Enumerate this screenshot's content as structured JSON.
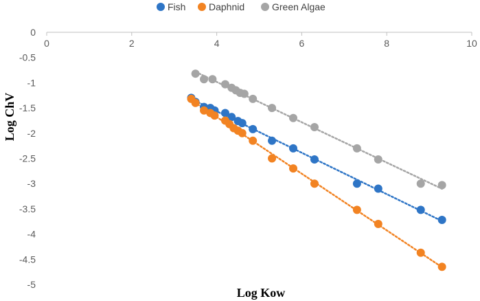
{
  "chart_data": {
    "type": "scatter",
    "title": "",
    "xlabel": "Log Kow",
    "ylabel": "Log ChV",
    "xlim": [
      0,
      10
    ],
    "ylim": [
      -5,
      0
    ],
    "x_ticks": [
      "0",
      "2",
      "4",
      "6",
      "8",
      "10"
    ],
    "y_ticks": [
      "0",
      "-0.5",
      "-1",
      "-1.5",
      "-2",
      "-2.5",
      "-3",
      "-3.5",
      "-4",
      "-4.5",
      "-5"
    ],
    "grid": false,
    "x_axis_position": "top",
    "legend_position": "top",
    "trendline": "linear, dotted",
    "series": [
      {
        "name": "Fish",
        "color": "#2E75C6",
        "points": [
          [
            3.4,
            -1.3
          ],
          [
            3.5,
            -1.38
          ],
          [
            3.7,
            -1.48
          ],
          [
            3.85,
            -1.5
          ],
          [
            3.95,
            -1.55
          ],
          [
            4.2,
            -1.6
          ],
          [
            4.35,
            -1.68
          ],
          [
            4.5,
            -1.76
          ],
          [
            4.6,
            -1.8
          ],
          [
            4.85,
            -1.92
          ],
          [
            5.3,
            -2.15
          ],
          [
            5.8,
            -2.3
          ],
          [
            6.3,
            -2.52
          ],
          [
            7.3,
            -3.0
          ],
          [
            7.8,
            -3.1
          ],
          [
            8.8,
            -3.52
          ],
          [
            9.3,
            -3.72
          ]
        ]
      },
      {
        "name": "Daphnid",
        "color": "#F28322",
        "points": [
          [
            3.4,
            -1.32
          ],
          [
            3.5,
            -1.4
          ],
          [
            3.7,
            -1.55
          ],
          [
            3.85,
            -1.6
          ],
          [
            3.95,
            -1.65
          ],
          [
            4.2,
            -1.75
          ],
          [
            4.3,
            -1.82
          ],
          [
            4.4,
            -1.9
          ],
          [
            4.5,
            -1.95
          ],
          [
            4.6,
            -2.0
          ],
          [
            4.85,
            -2.15
          ],
          [
            5.3,
            -2.5
          ],
          [
            5.8,
            -2.7
          ],
          [
            6.3,
            -3.0
          ],
          [
            7.3,
            -3.52
          ],
          [
            7.8,
            -3.8
          ],
          [
            8.8,
            -4.37
          ],
          [
            9.3,
            -4.65
          ]
        ]
      },
      {
        "name": "Green Algae",
        "color": "#A5A5A5",
        "points": [
          [
            3.5,
            -0.82
          ],
          [
            3.7,
            -0.93
          ],
          [
            3.9,
            -0.93
          ],
          [
            4.2,
            -1.03
          ],
          [
            4.35,
            -1.1
          ],
          [
            4.45,
            -1.15
          ],
          [
            4.55,
            -1.2
          ],
          [
            4.65,
            -1.22
          ],
          [
            4.85,
            -1.32
          ],
          [
            5.3,
            -1.5
          ],
          [
            5.8,
            -1.7
          ],
          [
            6.3,
            -1.88
          ],
          [
            7.3,
            -2.3
          ],
          [
            7.8,
            -2.52
          ],
          [
            8.8,
            -3.0
          ],
          [
            9.3,
            -3.03
          ]
        ]
      }
    ]
  }
}
